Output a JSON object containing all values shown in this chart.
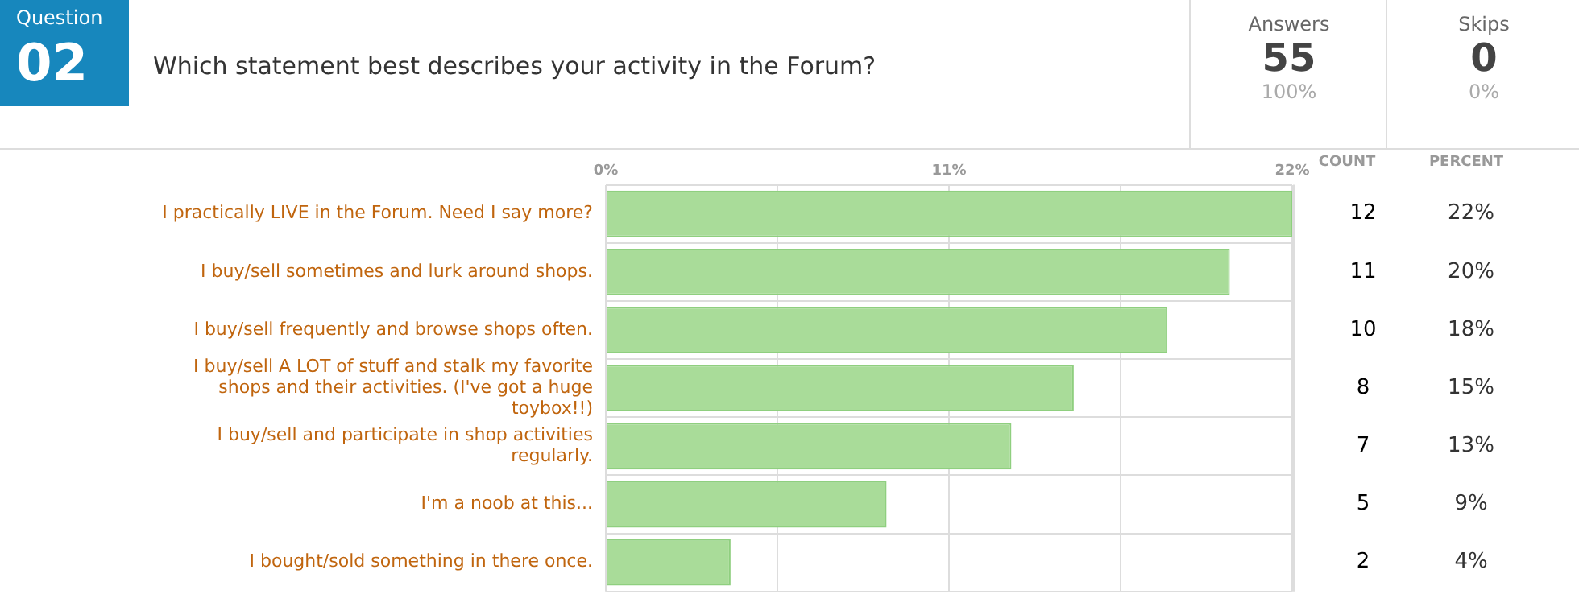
{
  "chart_data": {
    "type": "bar",
    "orientation": "horizontal",
    "title": "Which statement best describes your activity in the Forum?",
    "categories": [
      "I practically LIVE in the Forum. Need I say more?",
      "I buy/sell sometimes and lurk around shops.",
      "I buy/sell frequently and browse shops often.",
      "I buy/sell A LOT of stuff and stalk my favorite shops and their activities. (I've got a huge toybox!!)",
      "I buy/sell and participate in shop activities regularly.",
      "I'm a noob at this...",
      "I bought/sold something in there once."
    ],
    "values": [
      22,
      20,
      18,
      15,
      13,
      9,
      4
    ],
    "value_labels": [
      "22%",
      "20%",
      "18%",
      "15%",
      "13%",
      "9%",
      "4%"
    ],
    "color": "#a9dc99",
    "xlim": [
      0,
      22
    ],
    "xticks": [
      {
        "value": 0,
        "label": "0%"
      },
      {
        "value": 5.5,
        "label": null
      },
      {
        "value": 11,
        "label": "11%"
      },
      {
        "value": 16.5,
        "label": null
      },
      {
        "value": 22,
        "label": "22%"
      }
    ],
    "grid": true,
    "legend": false,
    "annotations": [
      "Question",
      "02",
      "Answers",
      "55",
      "100%",
      "Skips",
      "0",
      "0%",
      "COUNT",
      "PERCENT",
      "12",
      "11",
      "10",
      "8",
      "7",
      "5",
      "2"
    ]
  }
}
